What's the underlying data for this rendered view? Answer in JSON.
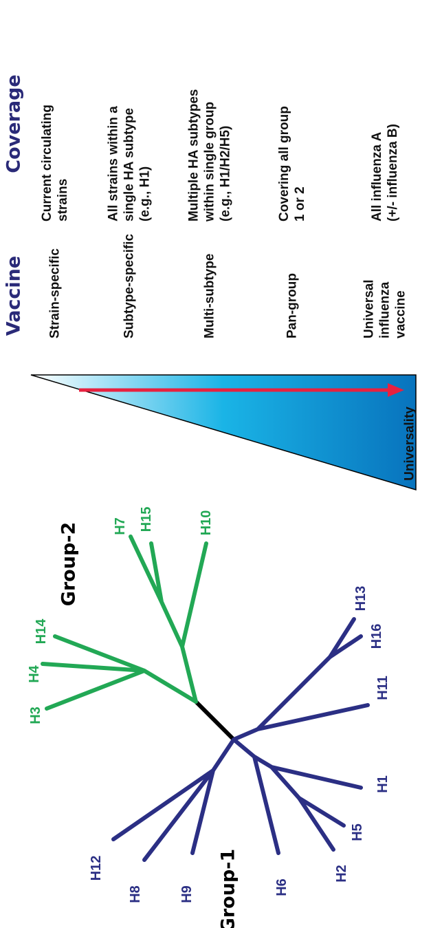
{
  "header": {
    "vaccine": "Vaccine",
    "coverage": "Coverage"
  },
  "rows": [
    {
      "vaccine": [
        "Strain-specific"
      ],
      "coverage": [
        "Current circulating",
        "strains"
      ]
    },
    {
      "vaccine": [
        "Subtype-specific"
      ],
      "coverage": [
        "All strains within a",
        "single HA subtype",
        "(e.g., H1)"
      ]
    },
    {
      "vaccine": [
        "Multi-subtype"
      ],
      "coverage": [
        "Multiple HA subtypes",
        "within single group",
        "(e.g., H1/H2/H5)"
      ]
    },
    {
      "vaccine": [
        "Pan-group"
      ],
      "coverage": [
        "Covering all group",
        "1 or 2"
      ]
    },
    {
      "vaccine": [
        "Universal",
        "influenza",
        "vaccine"
      ],
      "coverage": [
        "All influenza A",
        "(+/- influenza B)"
      ]
    }
  ],
  "scale_label": "Universality",
  "tree": {
    "group2": {
      "label": "Group-2",
      "leaves": [
        "H3",
        "H4",
        "H14",
        "H7",
        "H15",
        "H10"
      ]
    },
    "group1": {
      "label": "Group-1",
      "leaves": [
        "H13",
        "H16",
        "H11",
        "H1",
        "H5",
        "H2",
        "H6",
        "H9",
        "H8",
        "H12"
      ]
    }
  }
}
